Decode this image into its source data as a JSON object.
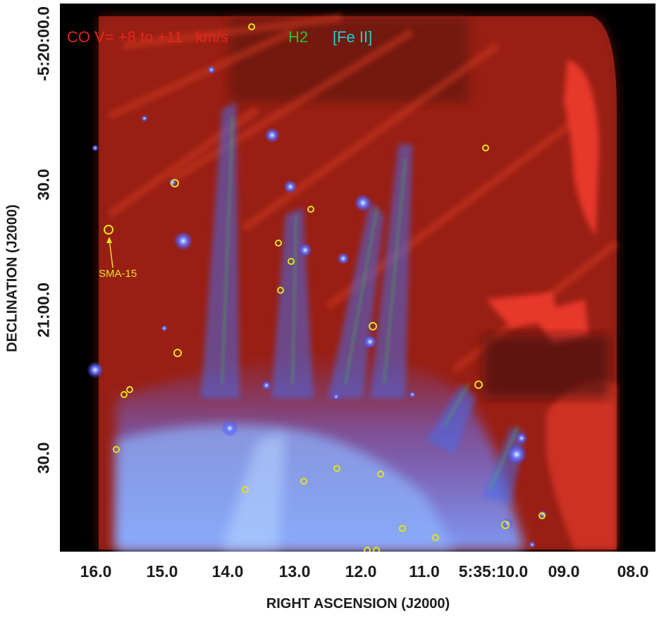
{
  "legend": {
    "co": "CO V= +8 to +11   km/s",
    "h2": "H2",
    "fe": "[Fe II]"
  },
  "annotation": {
    "label": "SMA-15"
  },
  "axes": {
    "xlabel": "RIGHT ASCENSION (J2000)",
    "ylabel": "DECLINATION (J2000)",
    "xticks": [
      "16.0",
      "15.0",
      "14.0",
      "13.0",
      "12.0",
      "11.0",
      "5:35:10.0",
      "09.0",
      "08.0"
    ],
    "yticks": [
      "-5:20:00.0",
      "30.0",
      "21:00.0",
      "30.0"
    ]
  },
  "colors": {
    "co": "#e3261a",
    "h2": "#22c628",
    "fe": "#22cfd0",
    "markers": "#e4e21d",
    "background": "#000000"
  }
}
